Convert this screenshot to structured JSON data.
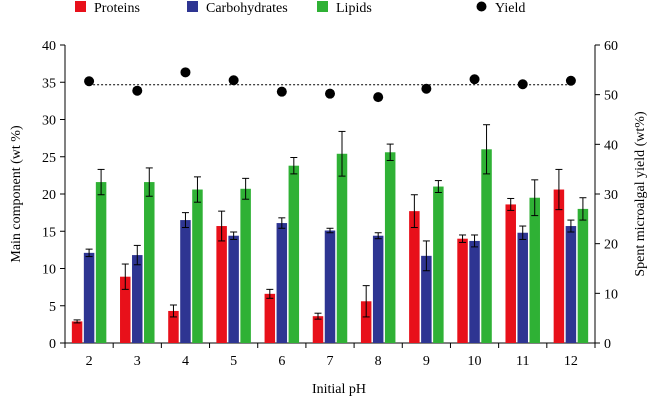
{
  "chart_data": {
    "type": "bar",
    "xlabel": "Initial pH",
    "ylabel": "Main component (wt %)",
    "y2label": "Spent microalgal yield (wt%)",
    "categories": [
      "2",
      "3",
      "4",
      "5",
      "6",
      "7",
      "8",
      "9",
      "10",
      "11",
      "12"
    ],
    "ylim": [
      0,
      40
    ],
    "yticks": [
      "0",
      "5",
      "10",
      "15",
      "20",
      "25",
      "30",
      "35",
      "40"
    ],
    "y2lim": [
      0,
      60
    ],
    "y2ticks": [
      "0",
      "10",
      "20",
      "30",
      "40",
      "50",
      "60"
    ],
    "grid": false,
    "legend_position": "top",
    "series": [
      {
        "name": "Proteins",
        "color": "#e8101a",
        "values": [
          2.9,
          8.9,
          4.3,
          15.7,
          6.6,
          3.6,
          5.6,
          17.7,
          14.0,
          18.6,
          20.6
        ],
        "errors": [
          0.2,
          1.7,
          0.8,
          2.0,
          0.6,
          0.4,
          2.1,
          2.2,
          0.5,
          0.8,
          2.7
        ]
      },
      {
        "name": "Carbohydrates",
        "color": "#2e3592",
        "values": [
          12.1,
          11.8,
          16.5,
          14.4,
          16.1,
          15.1,
          14.4,
          11.7,
          13.7,
          14.8,
          15.7
        ],
        "errors": [
          0.5,
          1.3,
          1.0,
          0.5,
          0.7,
          0.3,
          0.4,
          2.0,
          0.8,
          0.9,
          0.8
        ]
      },
      {
        "name": "Lipids",
        "color": "#2fb135",
        "values": [
          21.6,
          21.6,
          20.6,
          20.7,
          23.8,
          25.4,
          25.6,
          21.0,
          26.0,
          19.5,
          18.0
        ],
        "errors": [
          1.7,
          1.9,
          1.7,
          1.4,
          1.1,
          3.0,
          1.1,
          0.8,
          3.3,
          2.4,
          1.5
        ]
      }
    ],
    "yield_series": {
      "name": "Yield",
      "axis": "secondary",
      "color": "#000000",
      "values": [
        52.7,
        50.8,
        54.5,
        52.9,
        50.6,
        50.2,
        49.5,
        51.2,
        53.1,
        52.1,
        52.8
      ]
    },
    "reference_line": {
      "style": "dotted",
      "axis": "secondary",
      "value": 52
    }
  }
}
